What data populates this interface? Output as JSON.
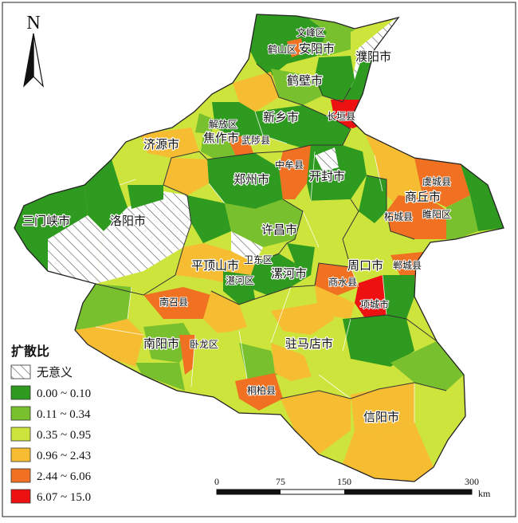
{
  "north_arrow": {
    "letter": "N"
  },
  "legend": {
    "title": "扩散比",
    "items": [
      {
        "label": "无意义",
        "color": "#ffffff",
        "pattern": "hatch"
      },
      {
        "label": "0.00 ~ 0.10",
        "color": "#2e9a1f"
      },
      {
        "label": "0.11 ~ 0.34",
        "color": "#78c02e"
      },
      {
        "label": "0.35 ~ 0.95",
        "color": "#cde43c"
      },
      {
        "label": "0.96 ~ 2.43",
        "color": "#f7bd32"
      },
      {
        "label": "2.44 ~ 6.06",
        "color": "#f07121"
      },
      {
        "label": "6.07 ~ 15.0",
        "color": "#ee1111"
      }
    ]
  },
  "scale_bar": {
    "ticks": [
      "0",
      "75",
      "150",
      "300"
    ],
    "unit": "km"
  },
  "places": [
    {
      "name": "文峰区",
      "size": "sm"
    },
    {
      "name": "鹤山区",
      "size": "sm"
    },
    {
      "name": "安阳市",
      "size": "lg"
    },
    {
      "name": "濮阳市",
      "size": "lg"
    },
    {
      "name": "鹤壁市",
      "size": "lg"
    },
    {
      "name": "新乡市",
      "size": "lg"
    },
    {
      "name": "长垣县",
      "size": "sm"
    },
    {
      "name": "解放区",
      "size": "sm"
    },
    {
      "name": "焦作市",
      "size": "lg"
    },
    {
      "name": "武陟县",
      "size": "sm"
    },
    {
      "name": "济源市",
      "size": "lg"
    },
    {
      "name": "中牟县",
      "size": "sm"
    },
    {
      "name": "开封市",
      "size": "lg"
    },
    {
      "name": "郑州市",
      "size": "lg"
    },
    {
      "name": "虞城县",
      "size": "sm"
    },
    {
      "name": "商丘市",
      "size": "lg"
    },
    {
      "name": "柘城县",
      "size": "sm"
    },
    {
      "name": "睢阳区",
      "size": "sm"
    },
    {
      "name": "三门峡市",
      "size": "lg"
    },
    {
      "name": "洛阳市",
      "size": "lg"
    },
    {
      "name": "许昌市",
      "size": "lg"
    },
    {
      "name": "平顶山市",
      "size": "lg"
    },
    {
      "name": "卫东区",
      "size": "sm"
    },
    {
      "name": "湛河区",
      "size": "sm"
    },
    {
      "name": "漯河市",
      "size": "lg"
    },
    {
      "name": "周口市",
      "size": "lg"
    },
    {
      "name": "郸城县",
      "size": "sm"
    },
    {
      "name": "商水县",
      "size": "sm"
    },
    {
      "name": "项城市",
      "size": "sm"
    },
    {
      "name": "南召县",
      "size": "sm"
    },
    {
      "name": "南阳市",
      "size": "lg"
    },
    {
      "name": "卧龙区",
      "size": "sm"
    },
    {
      "name": "驻马店市",
      "size": "lg"
    },
    {
      "name": "桐柏县",
      "size": "sm"
    },
    {
      "name": "信阳市",
      "size": "lg"
    }
  ]
}
